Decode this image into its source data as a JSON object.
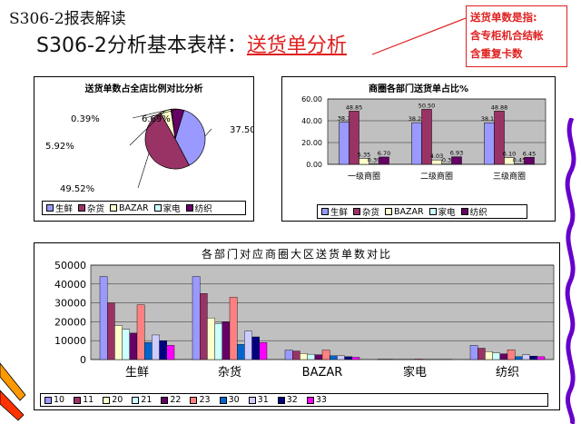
{
  "header": {
    "title": "S306-2报表解读",
    "subtitle_prefix": "S306-2分析基本表样：",
    "subtitle_highlight": "送货单分析"
  },
  "callout": {
    "line1": "送货单数是指:",
    "line2": "含专柜机合结帐",
    "line3": "含重复卡数"
  },
  "colors": {
    "accent_red": "#e02020",
    "plot_gray": "#c0c0c0",
    "s10": "#9999ff",
    "s11": "#993366",
    "s20": "#ffffcc",
    "s21": "#ccffff",
    "s22": "#660066",
    "s23": "#ff8080",
    "s30": "#0066cc",
    "s31": "#ccccff",
    "s32": "#000080",
    "s33": "#ff00ff"
  },
  "chart_data": [
    {
      "type": "pie",
      "title": "送货单数占全店比例对比分析",
      "categories": [
        "生鲜",
        "杂货",
        "BAZAR",
        "家电",
        "纺织"
      ],
      "values": [
        37.5,
        49.52,
        5.92,
        0.39,
        6.69
      ],
      "labels": [
        "37.50%",
        "49.52%",
        "5.92%",
        "0.39%",
        "6.69%"
      ],
      "legend": "bottom"
    },
    {
      "type": "bar",
      "title": "商圈各部门送货单占比%",
      "categories": [
        "一级商圈",
        "二级商圈",
        "三级商圈"
      ],
      "series": [
        {
          "name": "生鲜",
          "values": [
            38.7,
            38.25,
            38.15
          ],
          "labels": [
            "38.7",
            "38.25",
            "38.15"
          ]
        },
        {
          "name": "杂货",
          "values": [
            48.85,
            50.5,
            48.88
          ],
          "labels": [
            "48.85",
            "50.50",
            "48.88"
          ]
        },
        {
          "name": "BAZAR",
          "values": [
            5.35,
            4.03,
            6.1
          ],
          "labels": [
            "5.35",
            "4.03",
            "6.10"
          ]
        },
        {
          "name": "家电",
          "values": [
            0.39,
            0.3,
            0.45
          ],
          "labels": [
            "0.39",
            "0.3",
            "0.45"
          ]
        },
        {
          "name": "纺织",
          "values": [
            6.7,
            6.93,
            6.45
          ],
          "labels": [
            "6.70",
            "6.93",
            "6.45"
          ]
        }
      ],
      "yticks": [
        "0.00",
        "20.00",
        "40.00",
        "60.00"
      ],
      "ylim": [
        0,
        60
      ],
      "grid": true,
      "legend": "bottom"
    },
    {
      "type": "bar",
      "title": "各部门对应商圈大区送货单数对比",
      "categories": [
        "生鲜",
        "杂货",
        "BAZAR",
        "家电",
        "纺织"
      ],
      "series": [
        {
          "name": "10",
          "values": [
            44000,
            44000,
            5000,
            200,
            7500
          ]
        },
        {
          "name": "11",
          "values": [
            30000,
            35000,
            4500,
            200,
            6000
          ]
        },
        {
          "name": "20",
          "values": [
            18000,
            22000,
            3200,
            100,
            4200
          ]
        },
        {
          "name": "21",
          "values": [
            16000,
            19000,
            2800,
            100,
            3500
          ]
        },
        {
          "name": "22",
          "values": [
            14000,
            20000,
            2500,
            100,
            3000
          ]
        },
        {
          "name": "23",
          "values": [
            29000,
            33000,
            5000,
            300,
            5200
          ]
        },
        {
          "name": "30",
          "values": [
            9000,
            8000,
            2000,
            100,
            1500
          ]
        },
        {
          "name": "31",
          "values": [
            13000,
            15000,
            2000,
            100,
            2500
          ]
        },
        {
          "name": "32",
          "values": [
            10000,
            12000,
            1500,
            100,
            1800
          ]
        },
        {
          "name": "33",
          "values": [
            7500,
            9000,
            1200,
            100,
            1500
          ]
        }
      ],
      "yticks": [
        "0",
        "10000",
        "20000",
        "30000",
        "40000",
        "50000"
      ],
      "ylim": [
        0,
        50000
      ],
      "grid": true,
      "legend": "bottom"
    }
  ]
}
